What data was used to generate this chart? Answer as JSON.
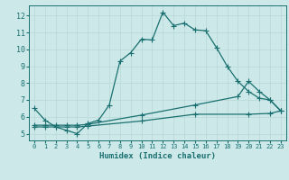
{
  "xlabel": "Humidex (Indice chaleur)",
  "bg_color": "#cce8e8",
  "line_color": "#1a7070",
  "grid_color": "#b8d8d8",
  "xlim": [
    -0.5,
    23.5
  ],
  "ylim": [
    4.6,
    12.6
  ],
  "xticks": [
    0,
    1,
    2,
    3,
    4,
    5,
    6,
    7,
    8,
    9,
    10,
    11,
    12,
    13,
    14,
    15,
    16,
    17,
    18,
    19,
    20,
    21,
    22,
    23
  ],
  "yticks": [
    5,
    6,
    7,
    8,
    9,
    10,
    11,
    12
  ],
  "line1_x": [
    0,
    1,
    2,
    3,
    4,
    5,
    6,
    7,
    8,
    9,
    10,
    11,
    12,
    13,
    14,
    15,
    16,
    17,
    18,
    19,
    20,
    21,
    22,
    23
  ],
  "line1_y": [
    6.5,
    5.8,
    5.4,
    5.2,
    5.0,
    5.6,
    5.8,
    6.7,
    9.3,
    9.8,
    10.6,
    10.55,
    12.2,
    11.4,
    11.55,
    11.15,
    11.1,
    10.1,
    9.0,
    8.1,
    7.5,
    7.1,
    7.0,
    6.35
  ],
  "line2_x": [
    0,
    1,
    2,
    3,
    4,
    5,
    10,
    15,
    19,
    20,
    21,
    22,
    23
  ],
  "line2_y": [
    5.5,
    5.5,
    5.5,
    5.5,
    5.5,
    5.55,
    6.1,
    6.7,
    7.2,
    8.1,
    7.5,
    7.0,
    6.35
  ],
  "line3_x": [
    0,
    1,
    2,
    3,
    4,
    5,
    10,
    15,
    20,
    22,
    23
  ],
  "line3_y": [
    5.4,
    5.4,
    5.4,
    5.4,
    5.4,
    5.45,
    5.75,
    6.15,
    6.15,
    6.2,
    6.35
  ],
  "marker_size": 2.5,
  "line_width": 0.9
}
